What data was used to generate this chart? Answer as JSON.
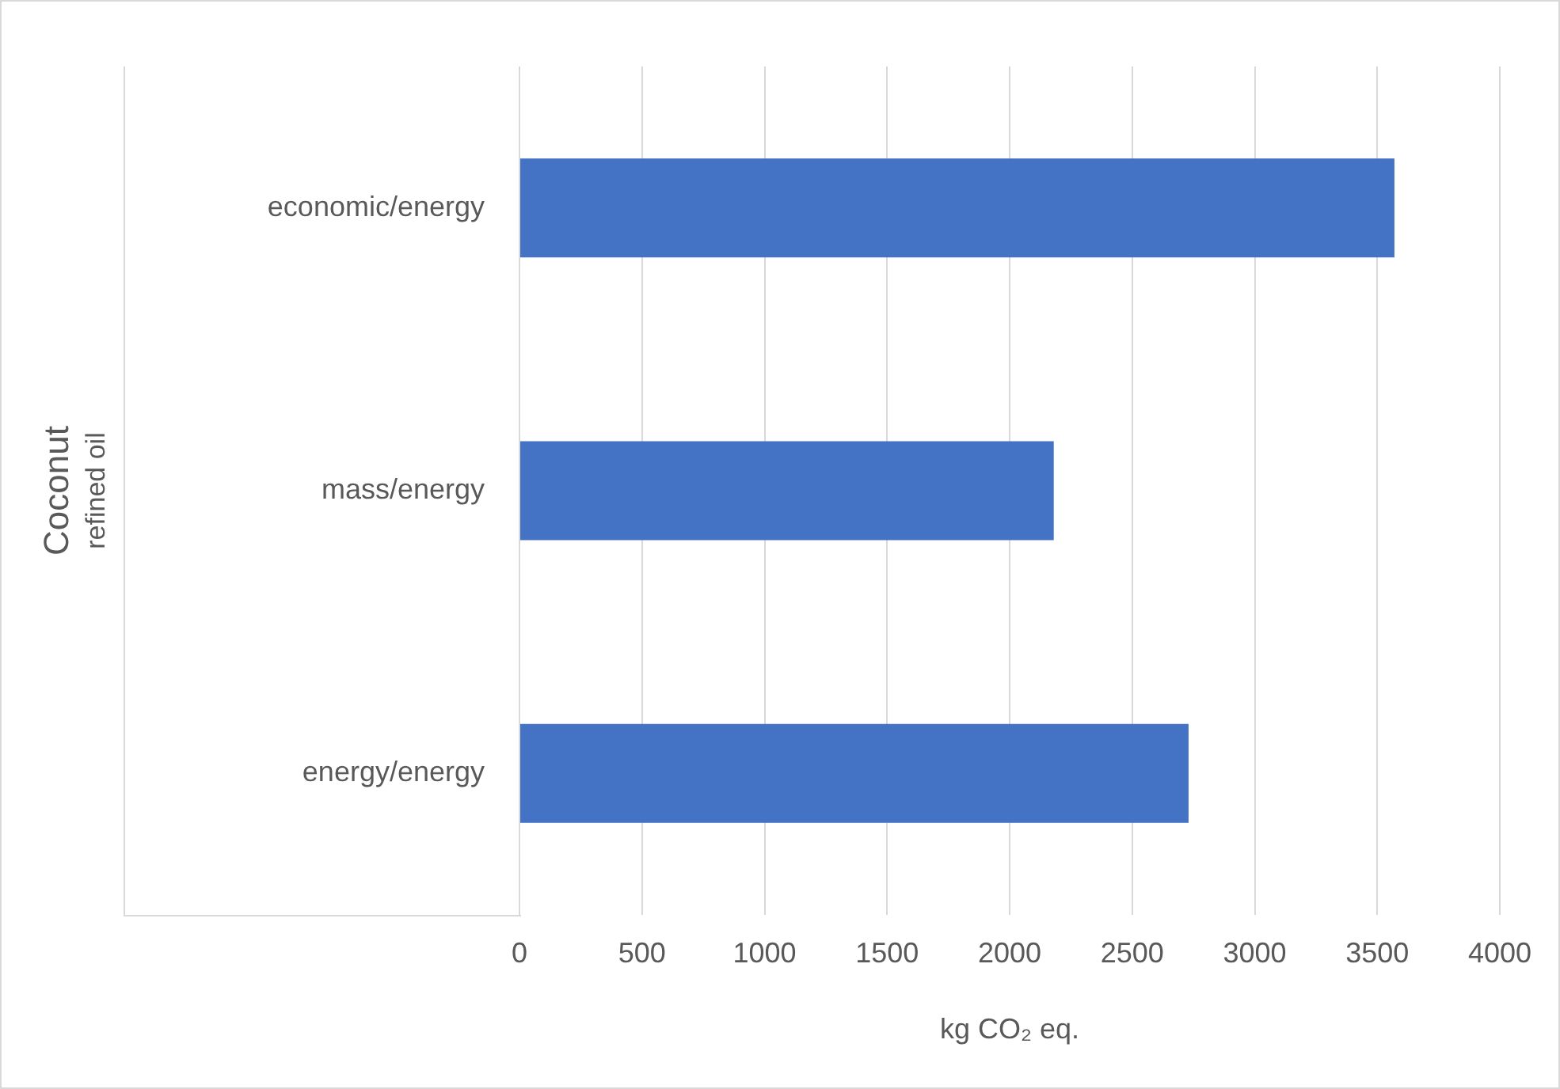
{
  "chart_data": {
    "type": "bar",
    "orientation": "horizontal",
    "categories": [
      "economic/energy",
      "mass/energy",
      "energy/energy"
    ],
    "values": [
      3570,
      2180,
      2730
    ],
    "color": "#4472c4",
    "xlim": [
      0,
      4000
    ],
    "xticks": [
      0,
      500,
      1000,
      1500,
      2000,
      2500,
      3000,
      3500,
      4000
    ],
    "xlabel": "kg CO₂ eq.",
    "annotations": [
      "Coconut",
      "refined oil"
    ],
    "grid": "x",
    "legend": false
  }
}
